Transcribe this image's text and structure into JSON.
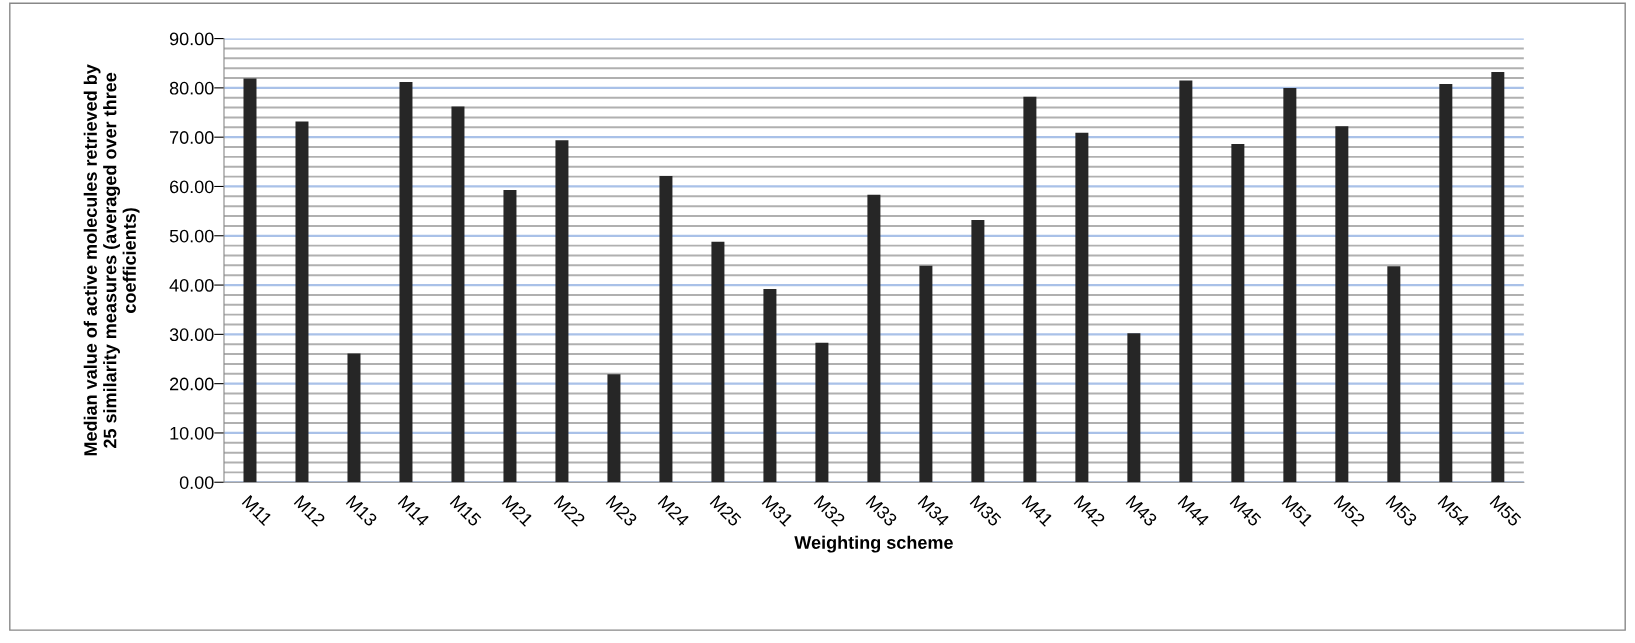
{
  "chart_data": {
    "type": "bar",
    "xlabel": "Weighting scheme",
    "ylabel": "Median value of active molecules retrieved by 25 similarity measures (averaged over three coefficients)",
    "categories": [
      "M11",
      "M12",
      "M13",
      "M14",
      "M15",
      "M21",
      "M22",
      "M23",
      "M24",
      "M25",
      "M31",
      "M32",
      "M33",
      "M34",
      "M35",
      "M41",
      "M42",
      "M43",
      "M44",
      "M45",
      "M51",
      "M52",
      "M53",
      "M54",
      "M55"
    ],
    "values": [
      81.9,
      73.2,
      26.1,
      81.2,
      76.2,
      59.3,
      69.4,
      21.9,
      62.1,
      48.8,
      39.2,
      28.3,
      58.3,
      43.9,
      53.2,
      78.2,
      70.9,
      30.2,
      81.5,
      68.6,
      80.0,
      72.2,
      43.8,
      80.8,
      83.2
    ],
    "color": "#262626",
    "ylim": [
      0,
      90
    ],
    "yticks": [
      {
        "value": 0,
        "label": "0.00"
      },
      {
        "value": 2,
        "label": null
      },
      {
        "value": 4,
        "label": null
      },
      {
        "value": 6,
        "label": null
      },
      {
        "value": 8,
        "label": null
      },
      {
        "value": 10,
        "label": "10.00"
      },
      {
        "value": 12,
        "label": null
      },
      {
        "value": 14,
        "label": null
      },
      {
        "value": 16,
        "label": null
      },
      {
        "value": 18,
        "label": null
      },
      {
        "value": 20,
        "label": "20.00"
      },
      {
        "value": 22,
        "label": null
      },
      {
        "value": 24,
        "label": null
      },
      {
        "value": 26,
        "label": null
      },
      {
        "value": 28,
        "label": null
      },
      {
        "value": 30,
        "label": "30.00"
      },
      {
        "value": 32,
        "label": null
      },
      {
        "value": 34,
        "label": null
      },
      {
        "value": 36,
        "label": null
      },
      {
        "value": 38,
        "label": null
      },
      {
        "value": 40,
        "label": "40.00"
      },
      {
        "value": 42,
        "label": null
      },
      {
        "value": 44,
        "label": null
      },
      {
        "value": 46,
        "label": null
      },
      {
        "value": 48,
        "label": null
      },
      {
        "value": 50,
        "label": "50.00"
      },
      {
        "value": 52,
        "label": null
      },
      {
        "value": 54,
        "label": null
      },
      {
        "value": 56,
        "label": null
      },
      {
        "value": 58,
        "label": null
      },
      {
        "value": 60,
        "label": "60.00"
      },
      {
        "value": 62,
        "label": null
      },
      {
        "value": 64,
        "label": null
      },
      {
        "value": 66,
        "label": null
      },
      {
        "value": 68,
        "label": null
      },
      {
        "value": 70,
        "label": "70.00"
      },
      {
        "value": 72,
        "label": null
      },
      {
        "value": 74,
        "label": null
      },
      {
        "value": 76,
        "label": null
      },
      {
        "value": 78,
        "label": null
      },
      {
        "value": 80,
        "label": "80.00"
      },
      {
        "value": 82,
        "label": null
      },
      {
        "value": 84,
        "label": null
      },
      {
        "value": 86,
        "label": null
      },
      {
        "value": 88,
        "label": null
      },
      {
        "value": 90,
        "label": "90.00"
      }
    ],
    "grid": "y"
  }
}
